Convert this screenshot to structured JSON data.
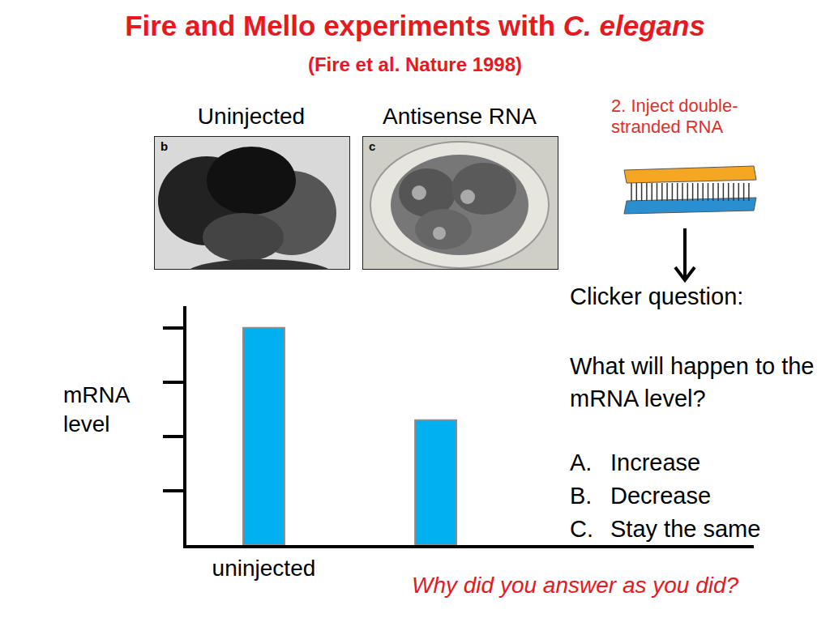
{
  "slide": {
    "title": [
      {
        "text": "Fire and Mello experiments with"
      },
      {
        "text": "C. elegans",
        "italic": true
      }
    ],
    "subtitle": "(Fire et al. Nature 1998)",
    "panels": [
      {
        "caption": "Uninjected",
        "letter": "b"
      },
      {
        "caption": "Antisense RNA",
        "letter": "c"
      }
    ],
    "step": "2. Inject double-stranded RNA",
    "question": {
      "heading": "Clicker question:",
      "prompt": "What will happen to the mRNA level?",
      "options": [
        {
          "letter": "A.",
          "text": "Increase"
        },
        {
          "letter": "B.",
          "text": "Decrease"
        },
        {
          "letter": "C.",
          "text": "Stay the same"
        }
      ]
    },
    "footnote": "Why did you answer as you did?"
  },
  "chart_data": {
    "type": "bar",
    "ylabel": "mRNA level",
    "categories": [
      "uninjected",
      null,
      null
    ],
    "values": [
      4,
      2.3,
      null
    ],
    "color": "#00b0f0",
    "ylim": [
      0,
      4.4
    ],
    "yticks": [
      1,
      2,
      3,
      4
    ],
    "grid": false,
    "tick_labels": "x"
  }
}
